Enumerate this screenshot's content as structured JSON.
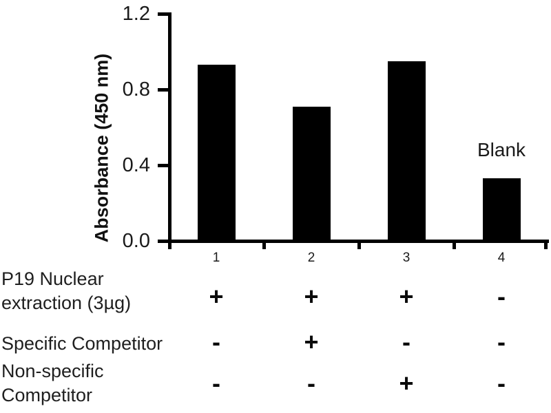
{
  "chart_data": {
    "type": "bar",
    "title": "",
    "xlabel": "",
    "ylabel": "Absorbance (450 nm)",
    "categories": [
      "1",
      "2",
      "3",
      "4"
    ],
    "values": [
      0.93,
      0.71,
      0.95,
      0.33
    ],
    "ylim": [
      0,
      1.2
    ],
    "yticks": [
      0,
      0.4,
      0.8,
      1.2
    ],
    "ytick_labels": [
      "0.0",
      "0.4",
      "0.8",
      "1.2"
    ],
    "bar_color": "#000000",
    "grid": false,
    "legend": "none",
    "annotations": [
      {
        "text": "Blank",
        "category_index": 3
      }
    ],
    "condition_rows": [
      {
        "label": "P19 Nuclear\nextraction (3µg)",
        "values": [
          "+",
          "+",
          "+",
          "-"
        ]
      },
      {
        "label": "Specific Competitor",
        "values": [
          "-",
          "+",
          "-",
          "-"
        ]
      },
      {
        "label": "Non-specific\nCompetitor",
        "values": [
          "-",
          "-",
          "+",
          "-"
        ]
      }
    ]
  },
  "colors": {
    "bar": "#000000",
    "axis": "#000000",
    "text": "#1a1a1a"
  }
}
